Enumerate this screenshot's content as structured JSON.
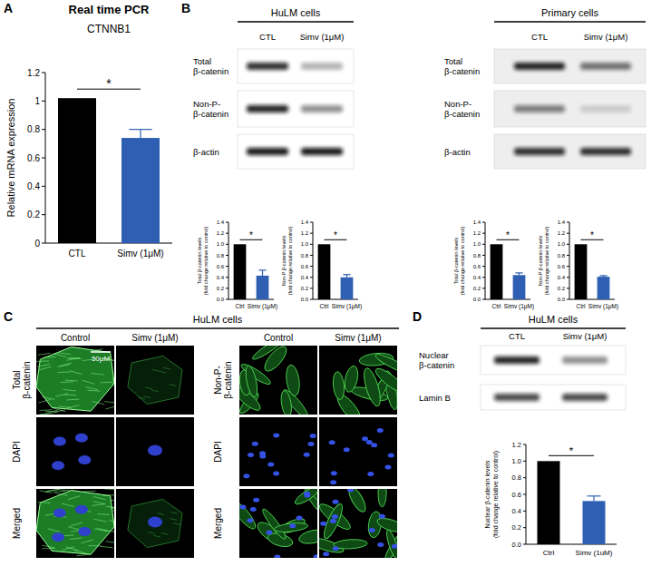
{
  "chart_data": [
    {
      "type": "bar",
      "title": "Real time PCR",
      "subtitle": "CTNNB1",
      "y_label": "Relative mRNA expression",
      "categories": [
        "CTL",
        "Simv (1μM)"
      ],
      "values": [
        1.02,
        0.74
      ],
      "errors": [
        null,
        0.06
      ],
      "colors": [
        "#000000",
        "#2f5fb3"
      ],
      "ylim": [
        0,
        1.2
      ],
      "yticks": [
        0,
        0.2,
        0.4,
        0.6,
        0.8,
        1,
        1.2
      ],
      "annotations": [
        "*"
      ]
    },
    {
      "type": "bar",
      "y_label": [
        "Total β-catenin levels",
        "(fold change relative to control)"
      ],
      "categories": [
        "Ctrl",
        "Simv (1μM)"
      ],
      "values": [
        1,
        0.43
      ],
      "errors": [
        null,
        0.1
      ],
      "colors": [
        "#000000",
        "#2f5fb3"
      ],
      "ylim": [
        0,
        1.4
      ],
      "yticks": [
        {
          "value": 0,
          "label": "0.0"
        },
        0.2,
        0.4,
        0.6,
        0.8,
        {
          "value": 1,
          "label": "1.0"
        },
        1.2,
        1.4
      ],
      "annotations": [
        "*"
      ]
    },
    {
      "type": "bar",
      "y_label": [
        "Non-P β-catenin levels",
        "(fold change relative to control)"
      ],
      "categories": [
        "Ctrl",
        "Simv (1μM)"
      ],
      "values": [
        1,
        0.4
      ],
      "errors": [
        null,
        0.05
      ],
      "colors": [
        "#000000",
        "#2f5fb3"
      ],
      "ylim": [
        0,
        1.4
      ],
      "yticks": [
        {
          "value": 0,
          "label": "0.0"
        },
        0.2,
        0.4,
        0.6,
        0.8,
        {
          "value": 1,
          "label": "1.0"
        },
        1.2,
        1.4
      ],
      "annotations": [
        "*"
      ]
    },
    {
      "type": "bar",
      "y_label": [
        "Total β-catenin levels",
        "(fold change relative to control)"
      ],
      "categories": [
        "Ctrl",
        "Simv (1μM)"
      ],
      "values": [
        1,
        0.44
      ],
      "errors": [
        null,
        0.04
      ],
      "colors": [
        "#000000",
        "#2f5fb3"
      ],
      "ylim": [
        0,
        1.4
      ],
      "yticks": [
        {
          "value": 0,
          "label": "0.0"
        },
        0.2,
        0.4,
        0.6,
        0.8,
        {
          "value": 1,
          "label": "1.0"
        },
        1.2,
        1.4
      ],
      "annotations": [
        "*"
      ]
    },
    {
      "type": "bar",
      "y_label": [
        "Non-P β-catenin levels",
        "(fold change relative to control)"
      ],
      "categories": [
        "Ctrl",
        "Simv (1μM)"
      ],
      "values": [
        1,
        0.41
      ],
      "errors": [
        null,
        0.02
      ],
      "colors": [
        "#000000",
        "#2f5fb3"
      ],
      "ylim": [
        0,
        1.4
      ],
      "yticks": [
        {
          "value": 0,
          "label": "0.0"
        },
        0.2,
        0.4,
        0.6,
        0.8,
        {
          "value": 1,
          "label": "1.0"
        },
        1.2,
        1.4
      ],
      "annotations": [
        "*"
      ]
    },
    {
      "type": "bar",
      "y_label": [
        "Nuclear β-catenin levels",
        "(fold change relative to control)"
      ],
      "categories": [
        "Ctrl",
        "Simv (1uM)"
      ],
      "values": [
        1,
        0.52
      ],
      "errors": [
        null,
        0.06
      ],
      "colors": [
        "#000000",
        "#2f5fb3"
      ],
      "ylim": [
        0,
        1.2
      ],
      "yticks": [
        {
          "value": 0,
          "label": "0.0"
        },
        0.2,
        0.4,
        0.6,
        0.8,
        {
          "value": 1,
          "label": "1.0"
        },
        1.2
      ],
      "annotations": [
        "*"
      ]
    }
  ],
  "figure": {
    "panel_labels": [
      "A",
      "B",
      "C",
      "D"
    ],
    "blots": [
      {
        "group": "HuLM cells",
        "lanes": [
          "CTL",
          "Simv (1μM)"
        ],
        "rows": [
          [
            "Total",
            "β-catenin"
          ],
          [
            "Non-P-",
            "β-catenin"
          ],
          [
            "β-actin"
          ]
        ]
      },
      {
        "group": "Primary cells",
        "lanes": [
          "CTL",
          "Simv (1μM)"
        ],
        "rows": [
          [
            "Total",
            "β-catenin"
          ],
          [
            "Non-P-",
            "β-catenin"
          ],
          [
            "β-actin"
          ]
        ]
      },
      {
        "group": "HuLM cells",
        "lanes": [
          "CTL",
          "Simv (1μM)"
        ],
        "rows": [
          [
            "Nuclear",
            "β-catenin"
          ],
          [
            "Lamin B"
          ]
        ]
      }
    ],
    "microscopy": {
      "group": "HuLM cells",
      "columns": [
        "Control",
        "Simv (1μM)",
        "Control",
        "Simv (1μM)"
      ],
      "rows": [
        [
          [
            "Total",
            "β-catenin"
          ],
          [
            "DAPI"
          ],
          [
            "Merged"
          ]
        ],
        [
          [
            "Non-P-",
            "β-catenin"
          ],
          [
            "DAPI"
          ],
          [
            "Merged"
          ]
        ]
      ],
      "scale_bar": "50μM"
    }
  }
}
